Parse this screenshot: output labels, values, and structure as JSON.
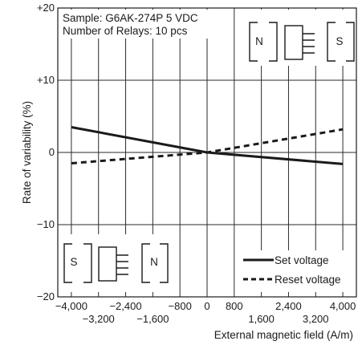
{
  "chart_data": {
    "type": "line",
    "title": "",
    "xlabel": "External magnetic field (A/m)",
    "ylabel": "Rate of variability (%)",
    "xlim": [
      -4400,
      4400
    ],
    "ylim": [
      -20,
      20
    ],
    "x_ticks_upper": [
      {
        "v": -4000,
        "label": "−4,000"
      },
      {
        "v": -2400,
        "label": "−2,400"
      },
      {
        "v": -800,
        "label": "−800"
      },
      {
        "v": 0,
        "label": "0"
      },
      {
        "v": 800,
        "label": "800"
      },
      {
        "v": 2400,
        "label": "2,400"
      },
      {
        "v": 4000,
        "label": "4,000"
      }
    ],
    "x_ticks_lower": [
      {
        "v": -3200,
        "label": "−3,200"
      },
      {
        "v": -1600,
        "label": "−1,600"
      },
      {
        "v": 1600,
        "label": "1,600"
      },
      {
        "v": 3200,
        "label": "3,200"
      }
    ],
    "x_gridlines": [
      -4000,
      -3200,
      -2400,
      -1600,
      -800,
      0,
      800,
      1600,
      2400,
      3200,
      4000
    ],
    "y_ticks": [
      {
        "v": 20,
        "label": "+20"
      },
      {
        "v": 10,
        "label": "+10"
      },
      {
        "v": 0,
        "label": "0"
      },
      {
        "v": -10,
        "label": "−10"
      },
      {
        "v": -20,
        "label": "−20"
      }
    ],
    "y_gridlines": [
      10,
      0,
      -10
    ],
    "grid": true,
    "series": [
      {
        "name": "Set voltage",
        "style": "solid",
        "x": [
          -4000,
          0,
          4000
        ],
        "y": [
          3.5,
          0,
          -1.6
        ]
      },
      {
        "name": "Reset voltage",
        "style": "dashed",
        "x": [
          -4000,
          0,
          4000
        ],
        "y": [
          -1.5,
          0,
          3.2
        ]
      }
    ],
    "legend_position": "bottom-right",
    "annotations": {
      "sample": "Sample: G6AK-274P 5 VDC",
      "relays": "Number of Relays: 10 pcs"
    },
    "magnet_labels": {
      "top_left": "N",
      "top_right": "S",
      "bottom_left": "S",
      "bottom_right": "N"
    }
  }
}
